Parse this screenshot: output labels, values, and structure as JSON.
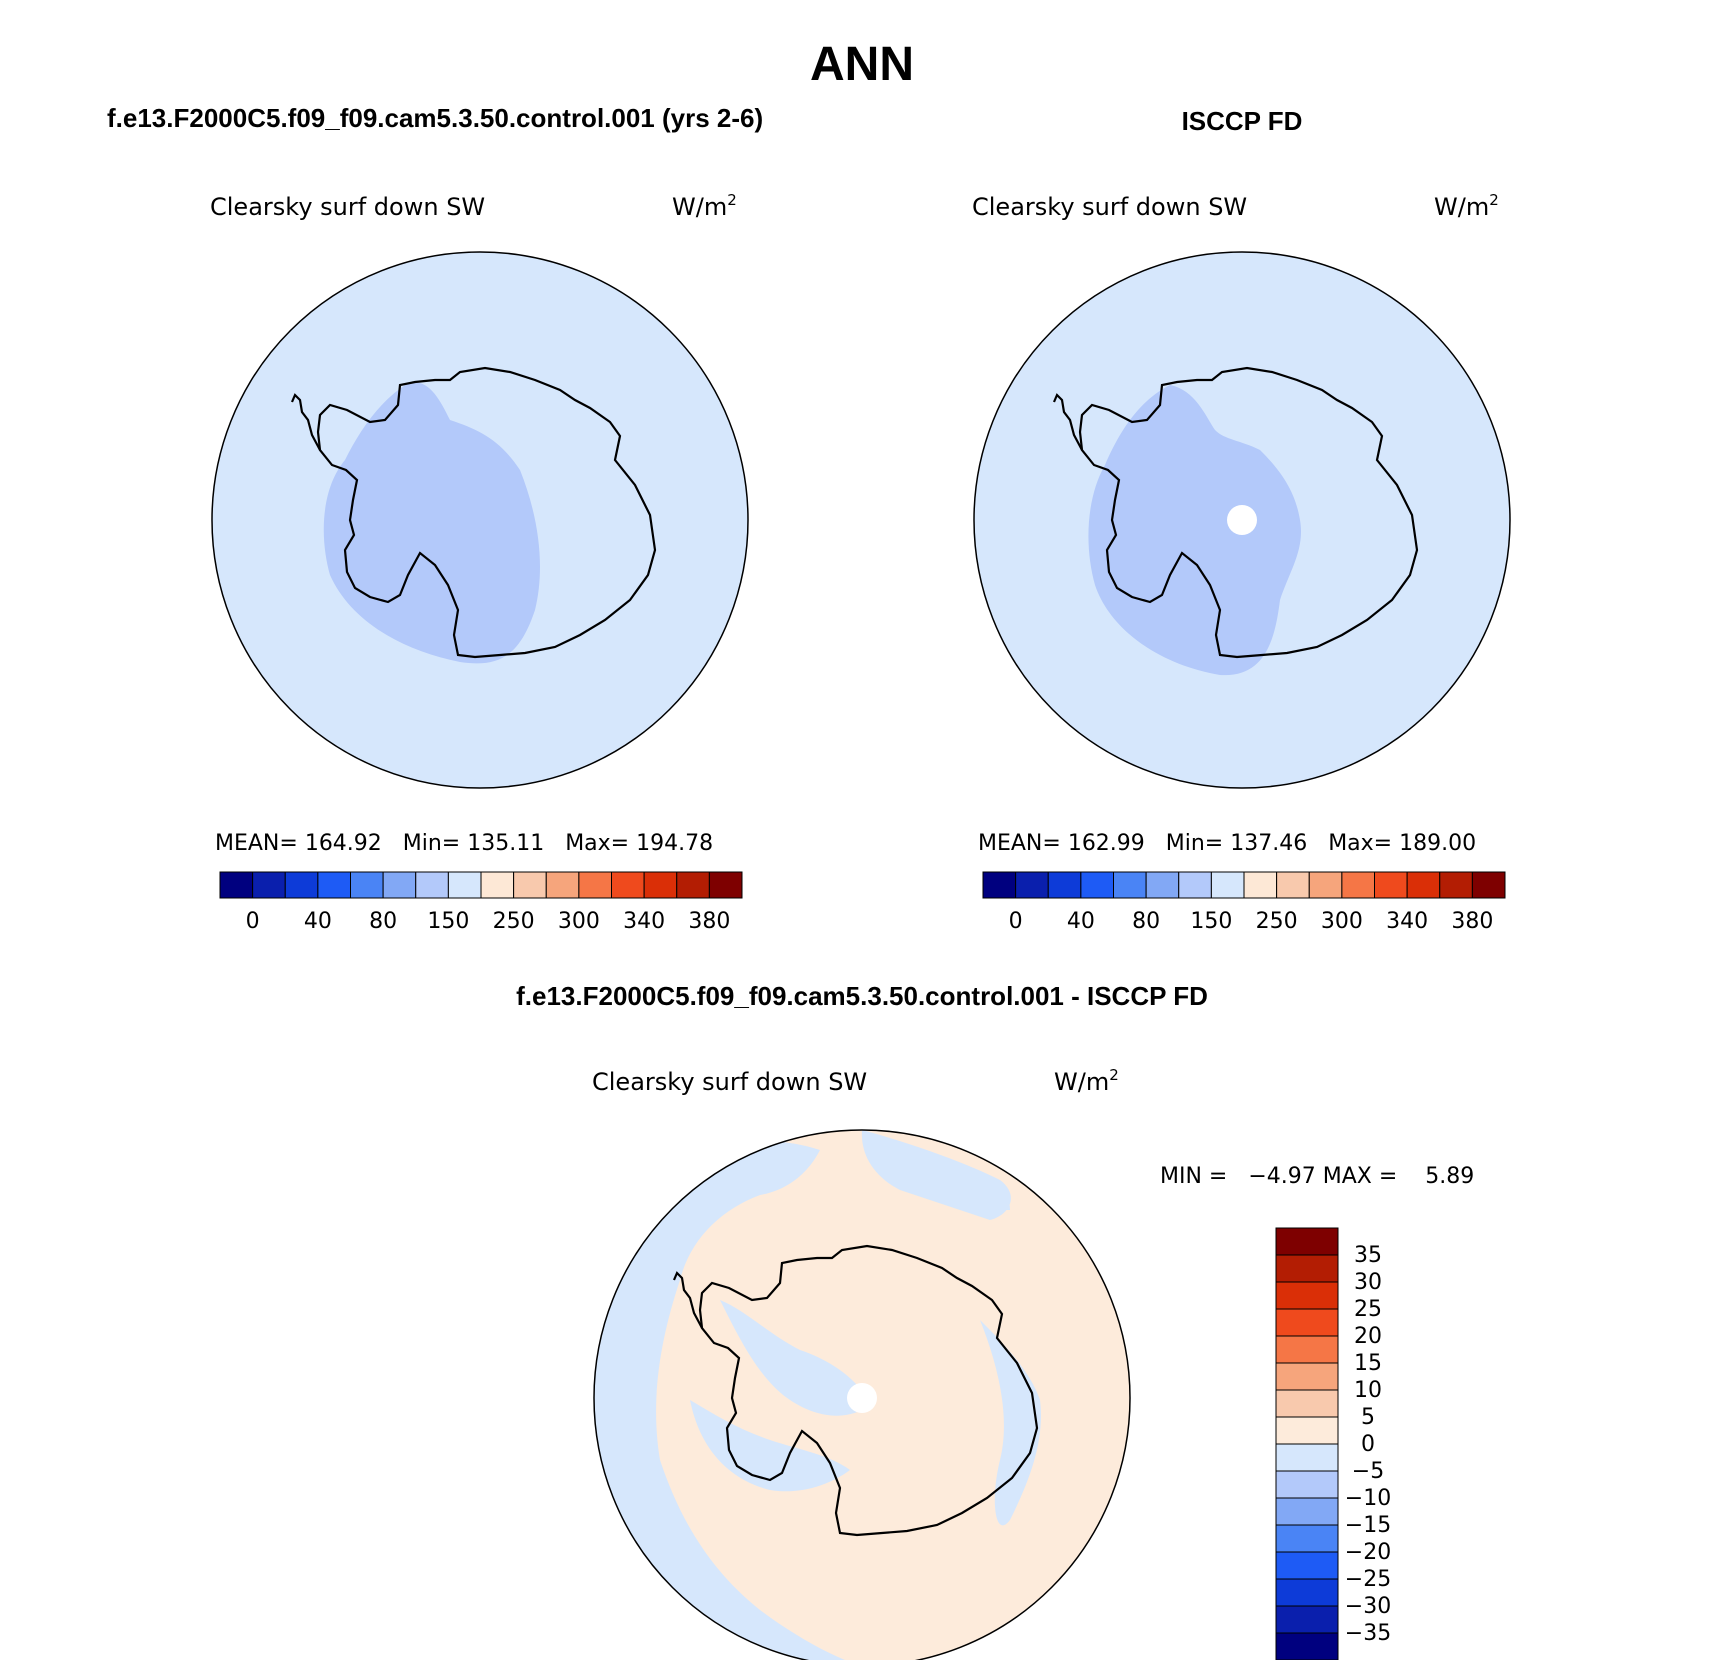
{
  "title": "ANN",
  "colors": {
    "sequential": [
      "#00007f",
      "#0a1fad",
      "#0d3bd8",
      "#1e5bf5",
      "#4a84f5",
      "#82a8f5",
      "#b3c9fa",
      "#d6e7fc",
      "#fde8d6",
      "#f8c9ad",
      "#f6a57c",
      "#f57646",
      "#ef4a1d",
      "#da2f07",
      "#b31d03",
      "#7e0000"
    ],
    "diverging": [
      "#00007f",
      "#0a1fad",
      "#0d3bd8",
      "#1e5bf5",
      "#4a84f5",
      "#82a8f5",
      "#b3c9fa",
      "#d6e7fc",
      "#fdebdb",
      "#f8c9ad",
      "#f6a57c",
      "#f57646",
      "#ef4a1d",
      "#da2f07",
      "#b31d03",
      "#7e0000"
    ],
    "ocean_fill": "#d6e7fc",
    "land_fill": "#b3c9fa",
    "positive_fill": "#fdebdb",
    "coastline": "#000000"
  },
  "panels": {
    "model": {
      "heading": "f.e13.F2000C5.f09_f09.cam5.3.50.control.001 (yrs 2-6)",
      "variable": "Clearsky surf down SW",
      "units": "W/m",
      "units_sup": "2",
      "stats": "MEAN= 164.92   Min= 135.11   Max= 194.78"
    },
    "obs": {
      "heading": "ISCCP FD",
      "variable": "Clearsky surf down SW",
      "units": "W/m",
      "units_sup": "2",
      "stats": "MEAN= 162.99   Min= 137.46   Max= 189.00"
    },
    "diff": {
      "heading": "f.e13.F2000C5.f09_f09.cam5.3.50.control.001 - ISCCP FD",
      "variable": "Clearsky surf down SW",
      "units": "W/m",
      "units_sup": "2",
      "stats": "MIN =   −4.97 MAX =    5.89"
    }
  },
  "chart_data": [
    {
      "type": "heatmap",
      "projection": "south-polar-stereographic",
      "title": "f.e13.F2000C5.f09_f09.cam5.3.50.control.001 (yrs 2-6)",
      "variable": "Clearsky surf down SW",
      "units": "W/m2",
      "mean": 164.92,
      "min": 135.11,
      "max": 194.78,
      "colorbar": {
        "orientation": "horizontal",
        "levels": [
          0,
          20,
          40,
          60,
          80,
          100,
          150,
          200,
          250,
          275,
          300,
          320,
          340,
          360,
          380
        ],
        "tick_labels": [
          "0",
          "40",
          "80",
          "150",
          "250",
          "300",
          "340",
          "380"
        ]
      }
    },
    {
      "type": "heatmap",
      "projection": "south-polar-stereographic",
      "title": "ISCCP FD",
      "variable": "Clearsky surf down SW",
      "units": "W/m2",
      "mean": 162.99,
      "min": 137.46,
      "max": 189.0,
      "colorbar": {
        "orientation": "horizontal",
        "levels": [
          0,
          20,
          40,
          60,
          80,
          100,
          150,
          200,
          250,
          275,
          300,
          320,
          340,
          360,
          380
        ],
        "tick_labels": [
          "0",
          "40",
          "80",
          "150",
          "250",
          "300",
          "340",
          "380"
        ]
      }
    },
    {
      "type": "heatmap",
      "projection": "south-polar-stereographic",
      "title": "f.e13.F2000C5.f09_f09.cam5.3.50.control.001 - ISCCP FD",
      "variable": "Clearsky surf down SW",
      "units": "W/m2",
      "min": -4.97,
      "max": 5.89,
      "colorbar": {
        "orientation": "vertical",
        "levels": [
          -35,
          -30,
          -25,
          -20,
          -15,
          -10,
          -5,
          0,
          5,
          10,
          15,
          20,
          25,
          30,
          35
        ],
        "tick_labels": [
          "35",
          "30",
          "25",
          "20",
          "15",
          "10",
          "5",
          "0",
          "−5",
          "−10",
          "−15",
          "−20",
          "−25",
          "−30",
          "−35"
        ]
      }
    }
  ]
}
